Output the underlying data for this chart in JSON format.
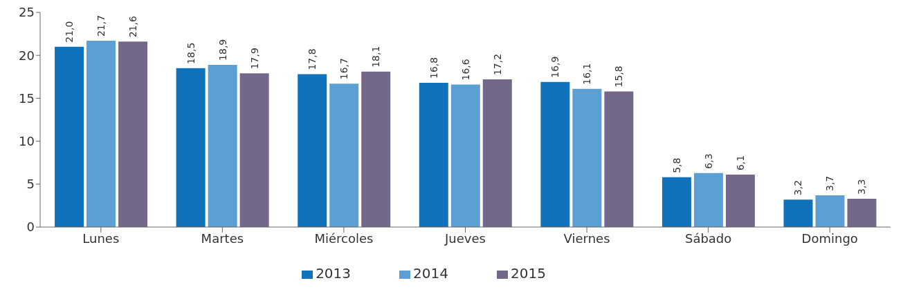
{
  "chart_data": {
    "type": "bar",
    "categories": [
      "Lunes",
      "Martes",
      "Miércoles",
      "Jueves",
      "Viernes",
      "Sábado",
      "Domingo"
    ],
    "series": [
      {
        "name": "2013",
        "color": "#1072ba",
        "values": [
          21.0,
          18.5,
          17.8,
          16.8,
          16.9,
          5.8,
          3.2
        ],
        "value_labels": [
          "21,0",
          "18,5",
          "17,8",
          "16,8",
          "16,9",
          "5,8",
          "3,2"
        ]
      },
      {
        "name": "2014",
        "color": "#5b9fd4",
        "values": [
          21.7,
          18.9,
          16.7,
          16.6,
          16.1,
          6.3,
          3.7
        ],
        "value_labels": [
          "21,7",
          "18,9",
          "16,7",
          "16,6",
          "16,1",
          "6,3",
          "3,7"
        ]
      },
      {
        "name": "2015",
        "color": "#74688a",
        "values": [
          21.6,
          17.9,
          18.1,
          17.2,
          15.8,
          6.1,
          3.3
        ],
        "value_labels": [
          "21,6",
          "17,9",
          "18,1",
          "17,2",
          "15,8",
          "6,1",
          "3,3"
        ]
      }
    ],
    "ylim": [
      0,
      25
    ],
    "yticks": [
      0,
      5,
      10,
      15,
      20,
      25
    ],
    "grid": false,
    "legend": "bottom"
  }
}
